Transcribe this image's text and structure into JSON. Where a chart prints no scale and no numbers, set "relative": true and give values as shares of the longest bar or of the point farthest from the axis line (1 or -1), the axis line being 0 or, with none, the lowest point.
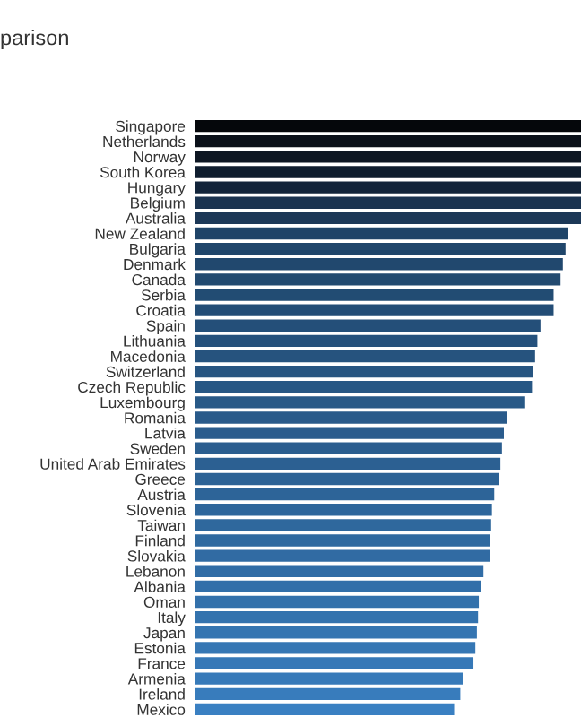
{
  "chart_data": {
    "type": "bar",
    "orientation": "horizontal",
    "relative": true,
    "title": "parison",
    "categories": [
      "Singapore",
      "Netherlands",
      "Norway",
      "South Korea",
      "Hungary",
      "Belgium",
      "Australia",
      "New Zealand",
      "Bulgaria",
      "Denmark",
      "Canada",
      "Serbia",
      "Croatia",
      "Spain",
      "Lithuania",
      "Macedonia",
      "Switzerland",
      "Czech Republic",
      "Luxembourg",
      "Romania",
      "Latvia",
      "Sweden",
      "United Arab Emirates",
      "Greece",
      "Austria",
      "Slovenia",
      "Taiwan",
      "Finland",
      "Slovakia",
      "Lebanon",
      "Albania",
      "Oman",
      "Italy",
      "Japan",
      "Estonia",
      "France",
      "Armenia",
      "Ireland",
      "Mexico"
    ],
    "values": [
      1,
      1,
      1,
      1,
      1,
      1,
      1,
      0.966,
      0.96,
      0.953,
      0.947,
      0.929,
      0.929,
      0.895,
      0.887,
      0.881,
      0.876,
      0.873,
      0.853,
      0.808,
      0.8,
      0.795,
      0.791,
      0.788,
      0.775,
      0.769,
      0.767,
      0.765,
      0.763,
      0.747,
      0.741,
      0.735,
      0.733,
      0.73,
      0.726,
      0.721,
      0.693,
      0.687,
      0.671
    ],
    "colors": [
      "#05070b",
      "#0a1019",
      "#0d1622",
      "#0f1d2e",
      "#12243a",
      "#1a3350",
      "#1c3857",
      "#1f4468",
      "#20466b",
      "#21486e",
      "#224a70",
      "#224c73",
      "#234d76",
      "#244f79",
      "#25517c",
      "#26537e",
      "#275581",
      "#275784",
      "#285987",
      "#295a8a",
      "#2a5c8d",
      "#2b5e8f",
      "#2c6092",
      "#2c6295",
      "#2d6498",
      "#2e669b",
      "#2f689d",
      "#306aa0",
      "#316ba3",
      "#316da6",
      "#326fa9",
      "#3371ab",
      "#3473ae",
      "#3575b1",
      "#3677b4",
      "#3678b7",
      "#377ab9",
      "#387cbc",
      "#3a80c2"
    ]
  }
}
